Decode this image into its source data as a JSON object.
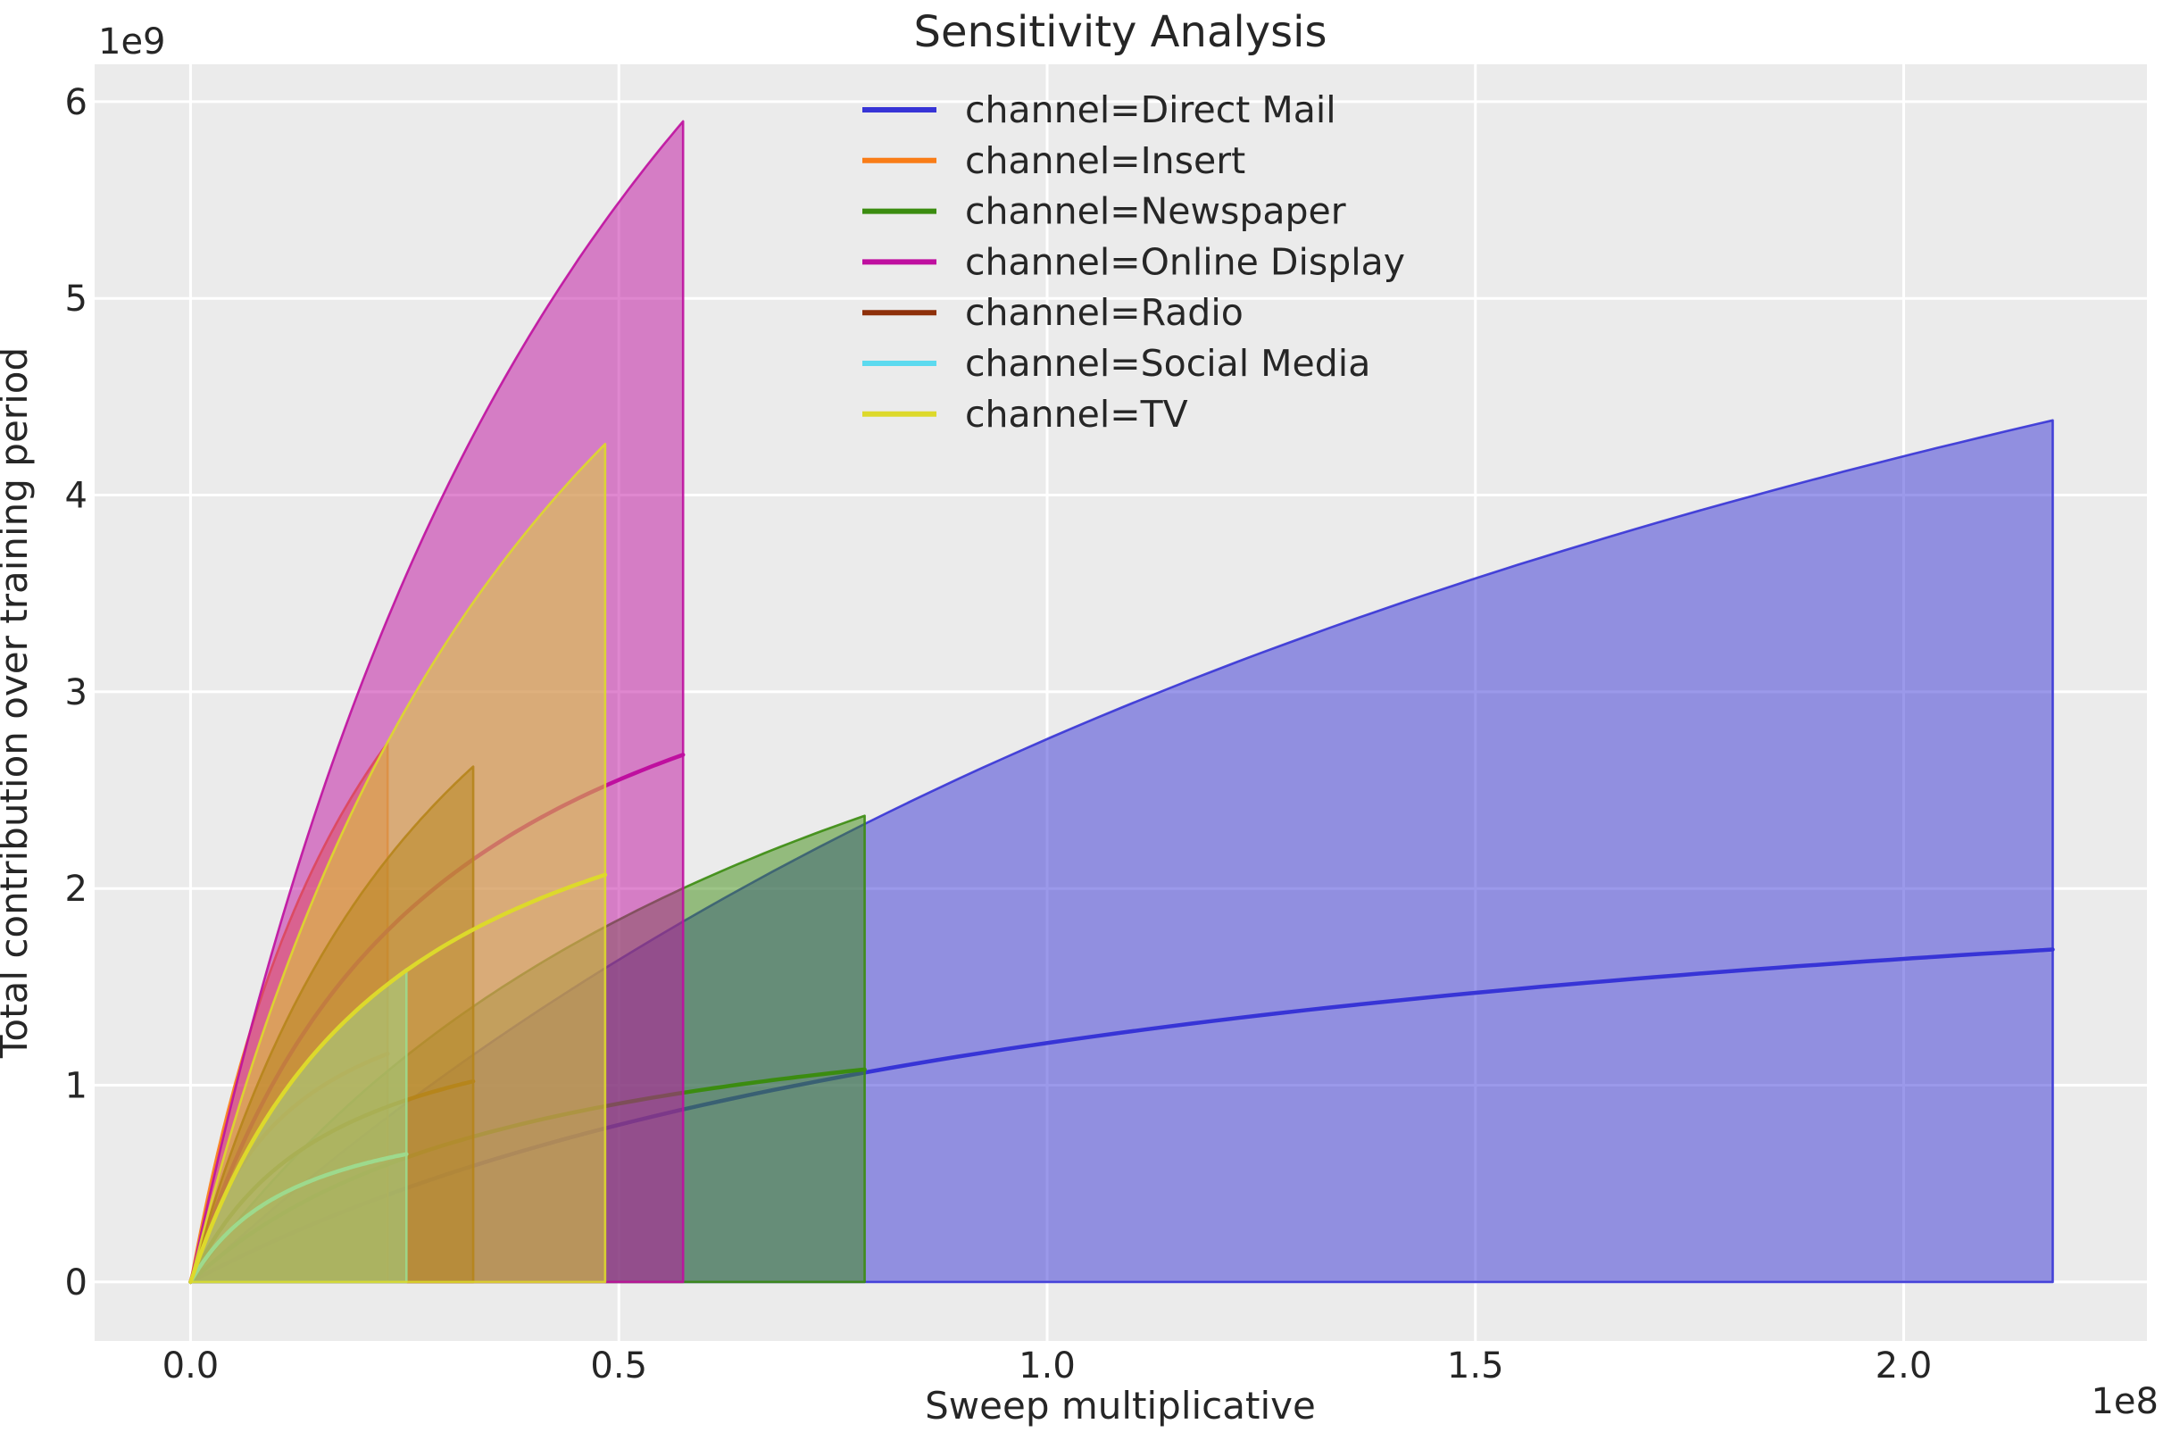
{
  "title": "Sensitivity Analysis",
  "chart_data": {
    "type": "line",
    "title": "Sensitivity Analysis",
    "xlabel": "Sweep multiplicative",
    "ylabel": "Total contribution over training period",
    "x_offset_label": "1e8",
    "y_offset_label": "1e9",
    "x_units": "1e8",
    "y_units": "1e9",
    "x_ticks": [
      0.0,
      0.5,
      1.0,
      1.5,
      2.0
    ],
    "y_ticks": [
      0,
      1,
      2,
      3,
      4,
      5,
      6
    ],
    "x_range": [
      -0.112,
      2.284
    ],
    "y_range": [
      -0.3,
      6.19
    ],
    "grid": true,
    "legend_position": "upper center inside",
    "band_alpha": 0.5,
    "curve_shape": {
      "line_k": 0.5,
      "band_k": 1.0,
      "note": "y(t)=end*(1+k)*t/(t+k), t=x/x_max, saturating response curves from origin"
    },
    "series": [
      {
        "label": "channel=Direct Mail",
        "color": "#3734d6",
        "x_max": 2.174,
        "line_end": 1.69,
        "band_top": 4.38,
        "band_bottom": 0
      },
      {
        "label": "channel=Insert",
        "color": "#f97d17",
        "x_max": 0.23,
        "line_end": 1.16,
        "band_top": 2.74,
        "band_bottom": 0
      },
      {
        "label": "channel=Newspaper",
        "color": "#3b8c10",
        "x_max": 0.787,
        "line_end": 1.08,
        "band_top": 2.37,
        "band_bottom": 0
      },
      {
        "label": "channel=Online Display",
        "color": "#bf0f9f",
        "x_max": 0.575,
        "line_end": 2.68,
        "band_top": 5.9,
        "band_bottom": 0
      },
      {
        "label": "channel=Radio",
        "color": "#8e300a",
        "x_max": 0.33,
        "line_end": 1.02,
        "band_top": 2.62,
        "band_bottom": 0
      },
      {
        "label": "channel=Social Media",
        "color": "#5cdaef",
        "x_max": 0.252,
        "line_end": 0.65,
        "band_top": 1.59,
        "band_bottom": 0
      },
      {
        "label": "channel=TV",
        "color": "#ddd92b",
        "x_max": 0.484,
        "line_end": 2.07,
        "band_top": 4.26,
        "band_bottom": 0
      }
    ]
  },
  "style": {
    "figure_bg": "#ffffff",
    "axes_bg": "#ebebeb",
    "grid_color": "#ffffff",
    "text_color": "#262626"
  }
}
